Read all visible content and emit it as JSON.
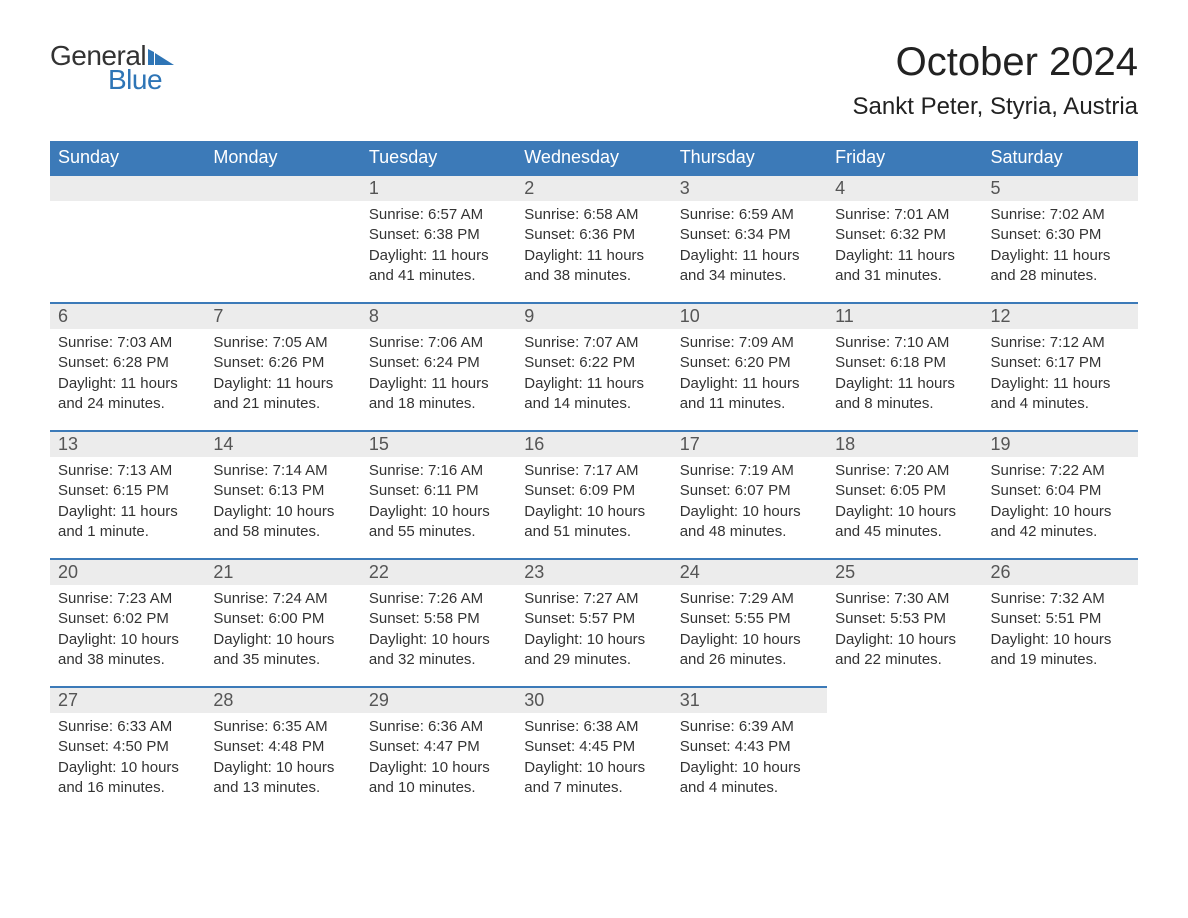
{
  "logo": {
    "word1": "General",
    "word2": "Blue"
  },
  "title": "October 2024",
  "location": "Sankt Peter, Styria, Austria",
  "colors": {
    "header_bg": "#3c7ab8",
    "header_text": "#ffffff",
    "daynum_bg": "#ececec",
    "daynum_border": "#3c7ab8",
    "body_text": "#333333",
    "logo_blue": "#2e75b6"
  },
  "weekdays": [
    "Sunday",
    "Monday",
    "Tuesday",
    "Wednesday",
    "Thursday",
    "Friday",
    "Saturday"
  ],
  "weeks": [
    [
      null,
      null,
      {
        "n": "1",
        "sunrise": "6:57 AM",
        "sunset": "6:38 PM",
        "daylight": "11 hours and 41 minutes."
      },
      {
        "n": "2",
        "sunrise": "6:58 AM",
        "sunset": "6:36 PM",
        "daylight": "11 hours and 38 minutes."
      },
      {
        "n": "3",
        "sunrise": "6:59 AM",
        "sunset": "6:34 PM",
        "daylight": "11 hours and 34 minutes."
      },
      {
        "n": "4",
        "sunrise": "7:01 AM",
        "sunset": "6:32 PM",
        "daylight": "11 hours and 31 minutes."
      },
      {
        "n": "5",
        "sunrise": "7:02 AM",
        "sunset": "6:30 PM",
        "daylight": "11 hours and 28 minutes."
      }
    ],
    [
      {
        "n": "6",
        "sunrise": "7:03 AM",
        "sunset": "6:28 PM",
        "daylight": "11 hours and 24 minutes."
      },
      {
        "n": "7",
        "sunrise": "7:05 AM",
        "sunset": "6:26 PM",
        "daylight": "11 hours and 21 minutes."
      },
      {
        "n": "8",
        "sunrise": "7:06 AM",
        "sunset": "6:24 PM",
        "daylight": "11 hours and 18 minutes."
      },
      {
        "n": "9",
        "sunrise": "7:07 AM",
        "sunset": "6:22 PM",
        "daylight": "11 hours and 14 minutes."
      },
      {
        "n": "10",
        "sunrise": "7:09 AM",
        "sunset": "6:20 PM",
        "daylight": "11 hours and 11 minutes."
      },
      {
        "n": "11",
        "sunrise": "7:10 AM",
        "sunset": "6:18 PM",
        "daylight": "11 hours and 8 minutes."
      },
      {
        "n": "12",
        "sunrise": "7:12 AM",
        "sunset": "6:17 PM",
        "daylight": "11 hours and 4 minutes."
      }
    ],
    [
      {
        "n": "13",
        "sunrise": "7:13 AM",
        "sunset": "6:15 PM",
        "daylight": "11 hours and 1 minute."
      },
      {
        "n": "14",
        "sunrise": "7:14 AM",
        "sunset": "6:13 PM",
        "daylight": "10 hours and 58 minutes."
      },
      {
        "n": "15",
        "sunrise": "7:16 AM",
        "sunset": "6:11 PM",
        "daylight": "10 hours and 55 minutes."
      },
      {
        "n": "16",
        "sunrise": "7:17 AM",
        "sunset": "6:09 PM",
        "daylight": "10 hours and 51 minutes."
      },
      {
        "n": "17",
        "sunrise": "7:19 AM",
        "sunset": "6:07 PM",
        "daylight": "10 hours and 48 minutes."
      },
      {
        "n": "18",
        "sunrise": "7:20 AM",
        "sunset": "6:05 PM",
        "daylight": "10 hours and 45 minutes."
      },
      {
        "n": "19",
        "sunrise": "7:22 AM",
        "sunset": "6:04 PM",
        "daylight": "10 hours and 42 minutes."
      }
    ],
    [
      {
        "n": "20",
        "sunrise": "7:23 AM",
        "sunset": "6:02 PM",
        "daylight": "10 hours and 38 minutes."
      },
      {
        "n": "21",
        "sunrise": "7:24 AM",
        "sunset": "6:00 PM",
        "daylight": "10 hours and 35 minutes."
      },
      {
        "n": "22",
        "sunrise": "7:26 AM",
        "sunset": "5:58 PM",
        "daylight": "10 hours and 32 minutes."
      },
      {
        "n": "23",
        "sunrise": "7:27 AM",
        "sunset": "5:57 PM",
        "daylight": "10 hours and 29 minutes."
      },
      {
        "n": "24",
        "sunrise": "7:29 AM",
        "sunset": "5:55 PM",
        "daylight": "10 hours and 26 minutes."
      },
      {
        "n": "25",
        "sunrise": "7:30 AM",
        "sunset": "5:53 PM",
        "daylight": "10 hours and 22 minutes."
      },
      {
        "n": "26",
        "sunrise": "7:32 AM",
        "sunset": "5:51 PM",
        "daylight": "10 hours and 19 minutes."
      }
    ],
    [
      {
        "n": "27",
        "sunrise": "6:33 AM",
        "sunset": "4:50 PM",
        "daylight": "10 hours and 16 minutes."
      },
      {
        "n": "28",
        "sunrise": "6:35 AM",
        "sunset": "4:48 PM",
        "daylight": "10 hours and 13 minutes."
      },
      {
        "n": "29",
        "sunrise": "6:36 AM",
        "sunset": "4:47 PM",
        "daylight": "10 hours and 10 minutes."
      },
      {
        "n": "30",
        "sunrise": "6:38 AM",
        "sunset": "4:45 PM",
        "daylight": "10 hours and 7 minutes."
      },
      {
        "n": "31",
        "sunrise": "6:39 AM",
        "sunset": "4:43 PM",
        "daylight": "10 hours and 4 minutes."
      },
      null,
      null
    ]
  ],
  "labels": {
    "sunrise": "Sunrise: ",
    "sunset": "Sunset: ",
    "daylight": "Daylight: "
  }
}
